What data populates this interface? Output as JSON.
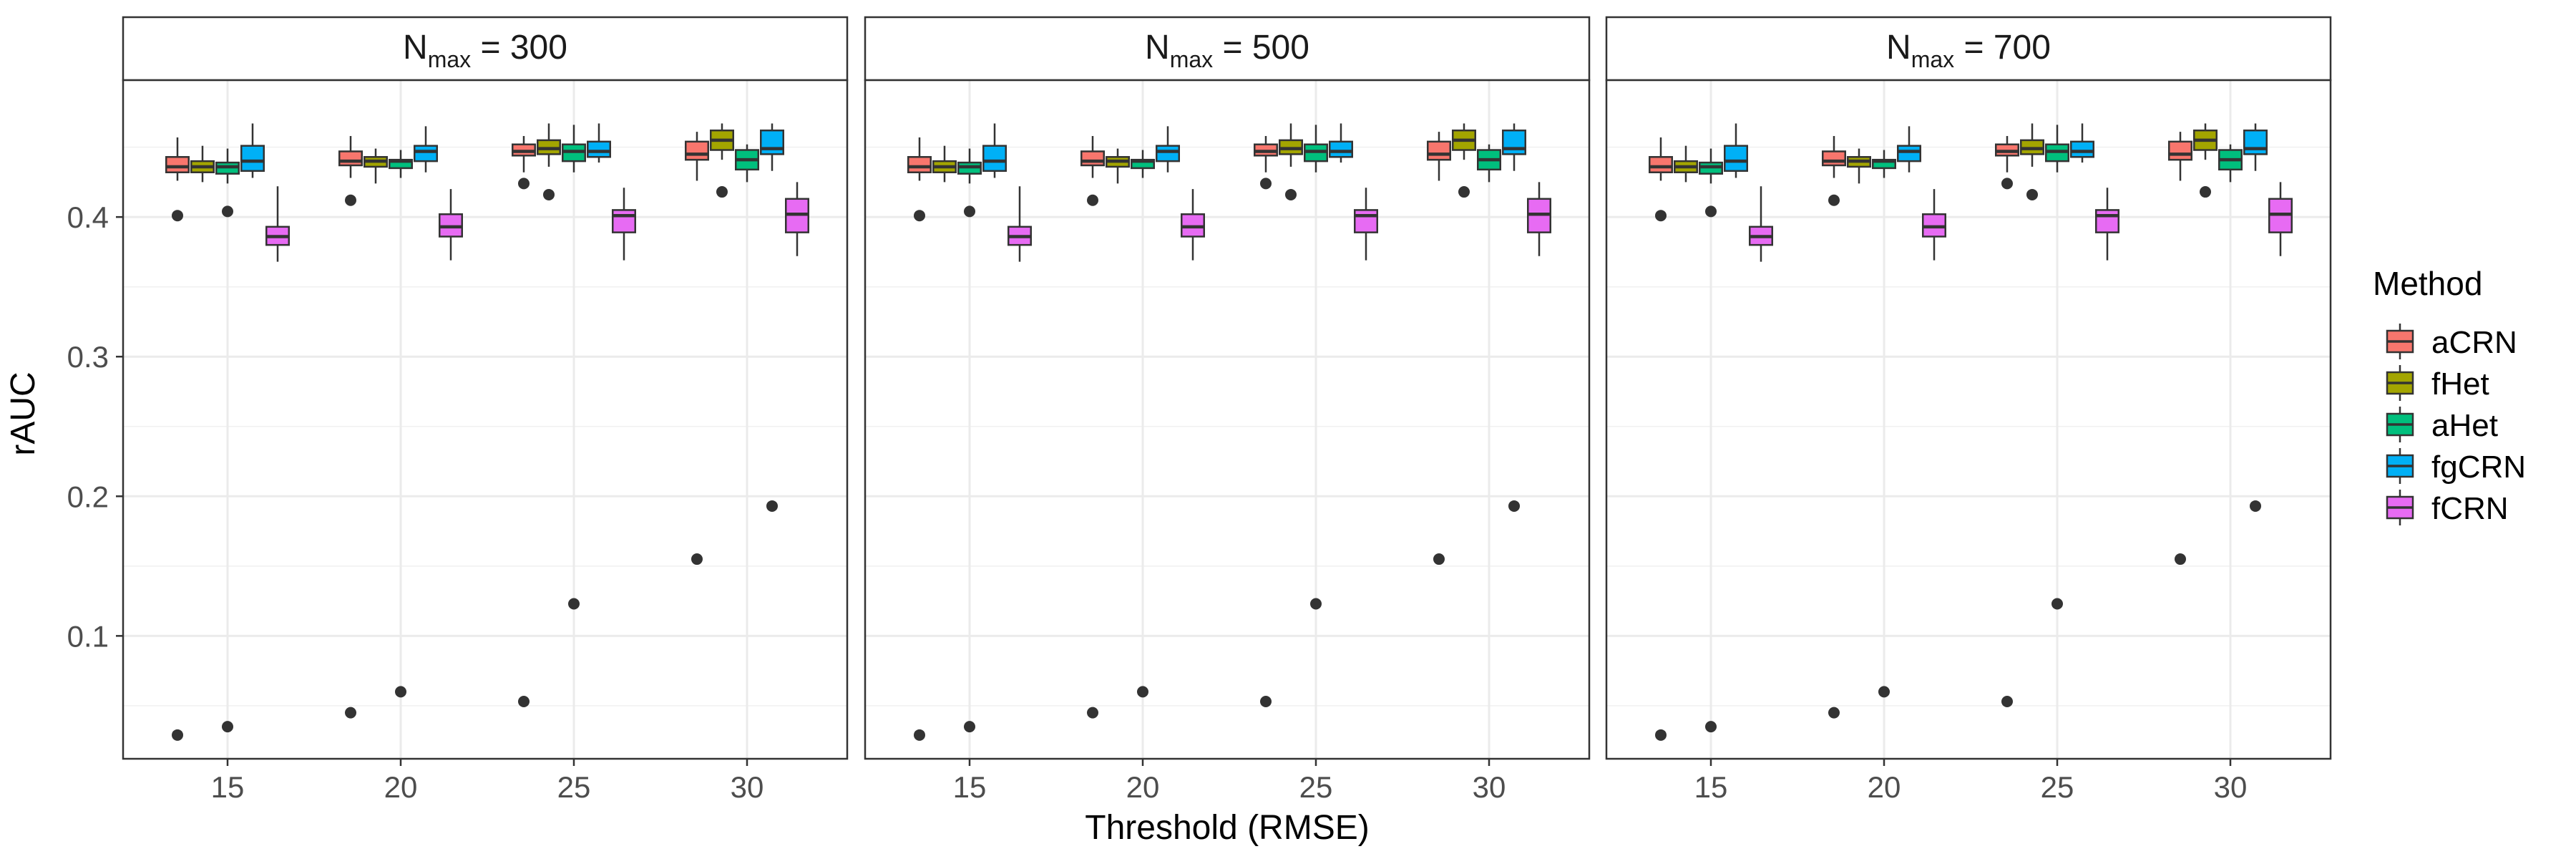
{
  "chart_data": {
    "type": "boxplot",
    "facet_variable": "N_max",
    "panels": [
      {
        "strip_main": "N",
        "strip_sub": "max",
        "strip_rest": " = 300"
      },
      {
        "strip_main": "N",
        "strip_sub": "max",
        "strip_rest": " = 500"
      },
      {
        "strip_main": "N",
        "strip_sub": "max",
        "strip_rest": " = 700"
      }
    ],
    "categories": [
      15,
      20,
      25,
      30
    ],
    "xlabel": "Threshold (RMSE)",
    "ylabel": "rAUC",
    "ylim": [
      0.012,
      0.498
    ],
    "yticks": [
      0.1,
      0.2,
      0.3,
      0.4
    ],
    "ytick_labels": [
      "0.1",
      "0.2",
      "0.3",
      "0.4"
    ],
    "grid": true,
    "legend": {
      "title": "Method",
      "position": "right",
      "entries": [
        "aCRN",
        "fHet",
        "aHet",
        "fgCRN",
        "fCRN"
      ]
    },
    "colors": {
      "aCRN": "#F8766D",
      "fHet": "#A3A500",
      "aHet": "#00BF7D",
      "fgCRN": "#00B0F6",
      "fCRN": "#E76BF3"
    },
    "series": [
      {
        "name": "aCRN",
        "boxes": [
          {
            "x": 15,
            "lower": 0.426,
            "q1": 0.432,
            "median": 0.436,
            "q3": 0.443,
            "upper": 0.457,
            "outliers": [
              0.401,
              0.029
            ]
          },
          {
            "x": 20,
            "lower": 0.428,
            "q1": 0.437,
            "median": 0.44,
            "q3": 0.447,
            "upper": 0.458,
            "outliers": [
              0.412,
              0.045
            ]
          },
          {
            "x": 25,
            "lower": 0.432,
            "q1": 0.444,
            "median": 0.447,
            "q3": 0.452,
            "upper": 0.458,
            "outliers": [
              0.424,
              0.053
            ]
          },
          {
            "x": 30,
            "lower": 0.426,
            "q1": 0.441,
            "median": 0.445,
            "q3": 0.454,
            "upper": 0.461,
            "outliers": [
              0.155
            ]
          }
        ]
      },
      {
        "name": "fHet",
        "boxes": [
          {
            "x": 15,
            "lower": 0.425,
            "q1": 0.432,
            "median": 0.436,
            "q3": 0.44,
            "upper": 0.451,
            "outliers": []
          },
          {
            "x": 20,
            "lower": 0.424,
            "q1": 0.436,
            "median": 0.44,
            "q3": 0.443,
            "upper": 0.449,
            "outliers": []
          },
          {
            "x": 25,
            "lower": 0.436,
            "q1": 0.445,
            "median": 0.449,
            "q3": 0.455,
            "upper": 0.467,
            "outliers": [
              0.416
            ]
          },
          {
            "x": 30,
            "lower": 0.441,
            "q1": 0.448,
            "median": 0.455,
            "q3": 0.462,
            "upper": 0.467,
            "outliers": [
              0.418
            ]
          }
        ]
      },
      {
        "name": "aHet",
        "boxes": [
          {
            "x": 15,
            "lower": 0.424,
            "q1": 0.431,
            "median": 0.436,
            "q3": 0.439,
            "upper": 0.449,
            "outliers": [
              0.404,
              0.035
            ]
          },
          {
            "x": 20,
            "lower": 0.428,
            "q1": 0.435,
            "median": 0.44,
            "q3": 0.441,
            "upper": 0.448,
            "outliers": [
              0.06
            ]
          },
          {
            "x": 25,
            "lower": 0.432,
            "q1": 0.44,
            "median": 0.447,
            "q3": 0.452,
            "upper": 0.466,
            "outliers": [
              0.123
            ]
          },
          {
            "x": 30,
            "lower": 0.425,
            "q1": 0.434,
            "median": 0.441,
            "q3": 0.448,
            "upper": 0.452,
            "outliers": []
          }
        ]
      },
      {
        "name": "fgCRN",
        "boxes": [
          {
            "x": 15,
            "lower": 0.428,
            "q1": 0.433,
            "median": 0.44,
            "q3": 0.451,
            "upper": 0.467,
            "outliers": []
          },
          {
            "x": 20,
            "lower": 0.432,
            "q1": 0.44,
            "median": 0.447,
            "q3": 0.451,
            "upper": 0.465,
            "outliers": []
          },
          {
            "x": 25,
            "lower": 0.439,
            "q1": 0.443,
            "median": 0.447,
            "q3": 0.454,
            "upper": 0.467,
            "outliers": []
          },
          {
            "x": 30,
            "lower": 0.433,
            "q1": 0.445,
            "median": 0.449,
            "q3": 0.462,
            "upper": 0.467,
            "outliers": [
              0.193
            ]
          }
        ]
      },
      {
        "name": "fCRN",
        "boxes": [
          {
            "x": 15,
            "lower": 0.368,
            "q1": 0.38,
            "median": 0.386,
            "q3": 0.393,
            "upper": 0.422,
            "outliers": []
          },
          {
            "x": 20,
            "lower": 0.369,
            "q1": 0.386,
            "median": 0.393,
            "q3": 0.402,
            "upper": 0.42,
            "outliers": []
          },
          {
            "x": 25,
            "lower": 0.369,
            "q1": 0.389,
            "median": 0.401,
            "q3": 0.405,
            "upper": 0.421,
            "outliers": []
          },
          {
            "x": 30,
            "lower": 0.372,
            "q1": 0.389,
            "median": 0.402,
            "q3": 0.413,
            "upper": 0.425,
            "outliers": []
          }
        ]
      }
    ]
  }
}
